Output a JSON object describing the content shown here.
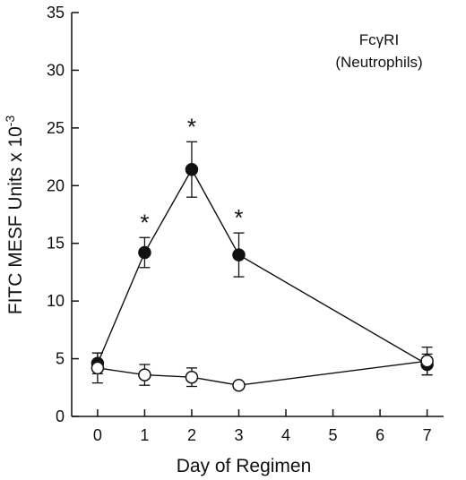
{
  "chart_data": {
    "type": "line",
    "xlabel": "Day of Regimen",
    "ylabel": "FITC MESF Units x 10",
    "ylabel_superscript": "-3",
    "annotation_line1": "FcγRI",
    "annotation_line2": "(Neutrophils)",
    "x_ticks": [
      "0",
      "1",
      "2",
      "3",
      "4",
      "5",
      "6",
      "7"
    ],
    "y_ticks": [
      "0",
      "5",
      "10",
      "15",
      "20",
      "25",
      "30",
      "35"
    ],
    "ylim": [
      0,
      35
    ],
    "xlim": [
      -0.55,
      7.35
    ],
    "grid": false,
    "series": [
      {
        "marker": "filled-circle",
        "x": [
          0,
          1,
          2,
          3,
          7
        ],
        "y": [
          4.6,
          14.2,
          21.4,
          14.0,
          4.5
        ],
        "error": [
          0.9,
          1.3,
          2.4,
          1.9,
          0.9
        ]
      },
      {
        "marker": "open-circle",
        "x": [
          0,
          1,
          2,
          3,
          7
        ],
        "y": [
          4.2,
          3.6,
          3.4,
          2.7,
          4.8
        ],
        "error": [
          1.3,
          0.9,
          0.8,
          0,
          1.2
        ]
      }
    ],
    "significance": [
      {
        "x": 1,
        "label": "*"
      },
      {
        "x": 2,
        "label": "*"
      },
      {
        "x": 3,
        "label": "*"
      }
    ]
  }
}
